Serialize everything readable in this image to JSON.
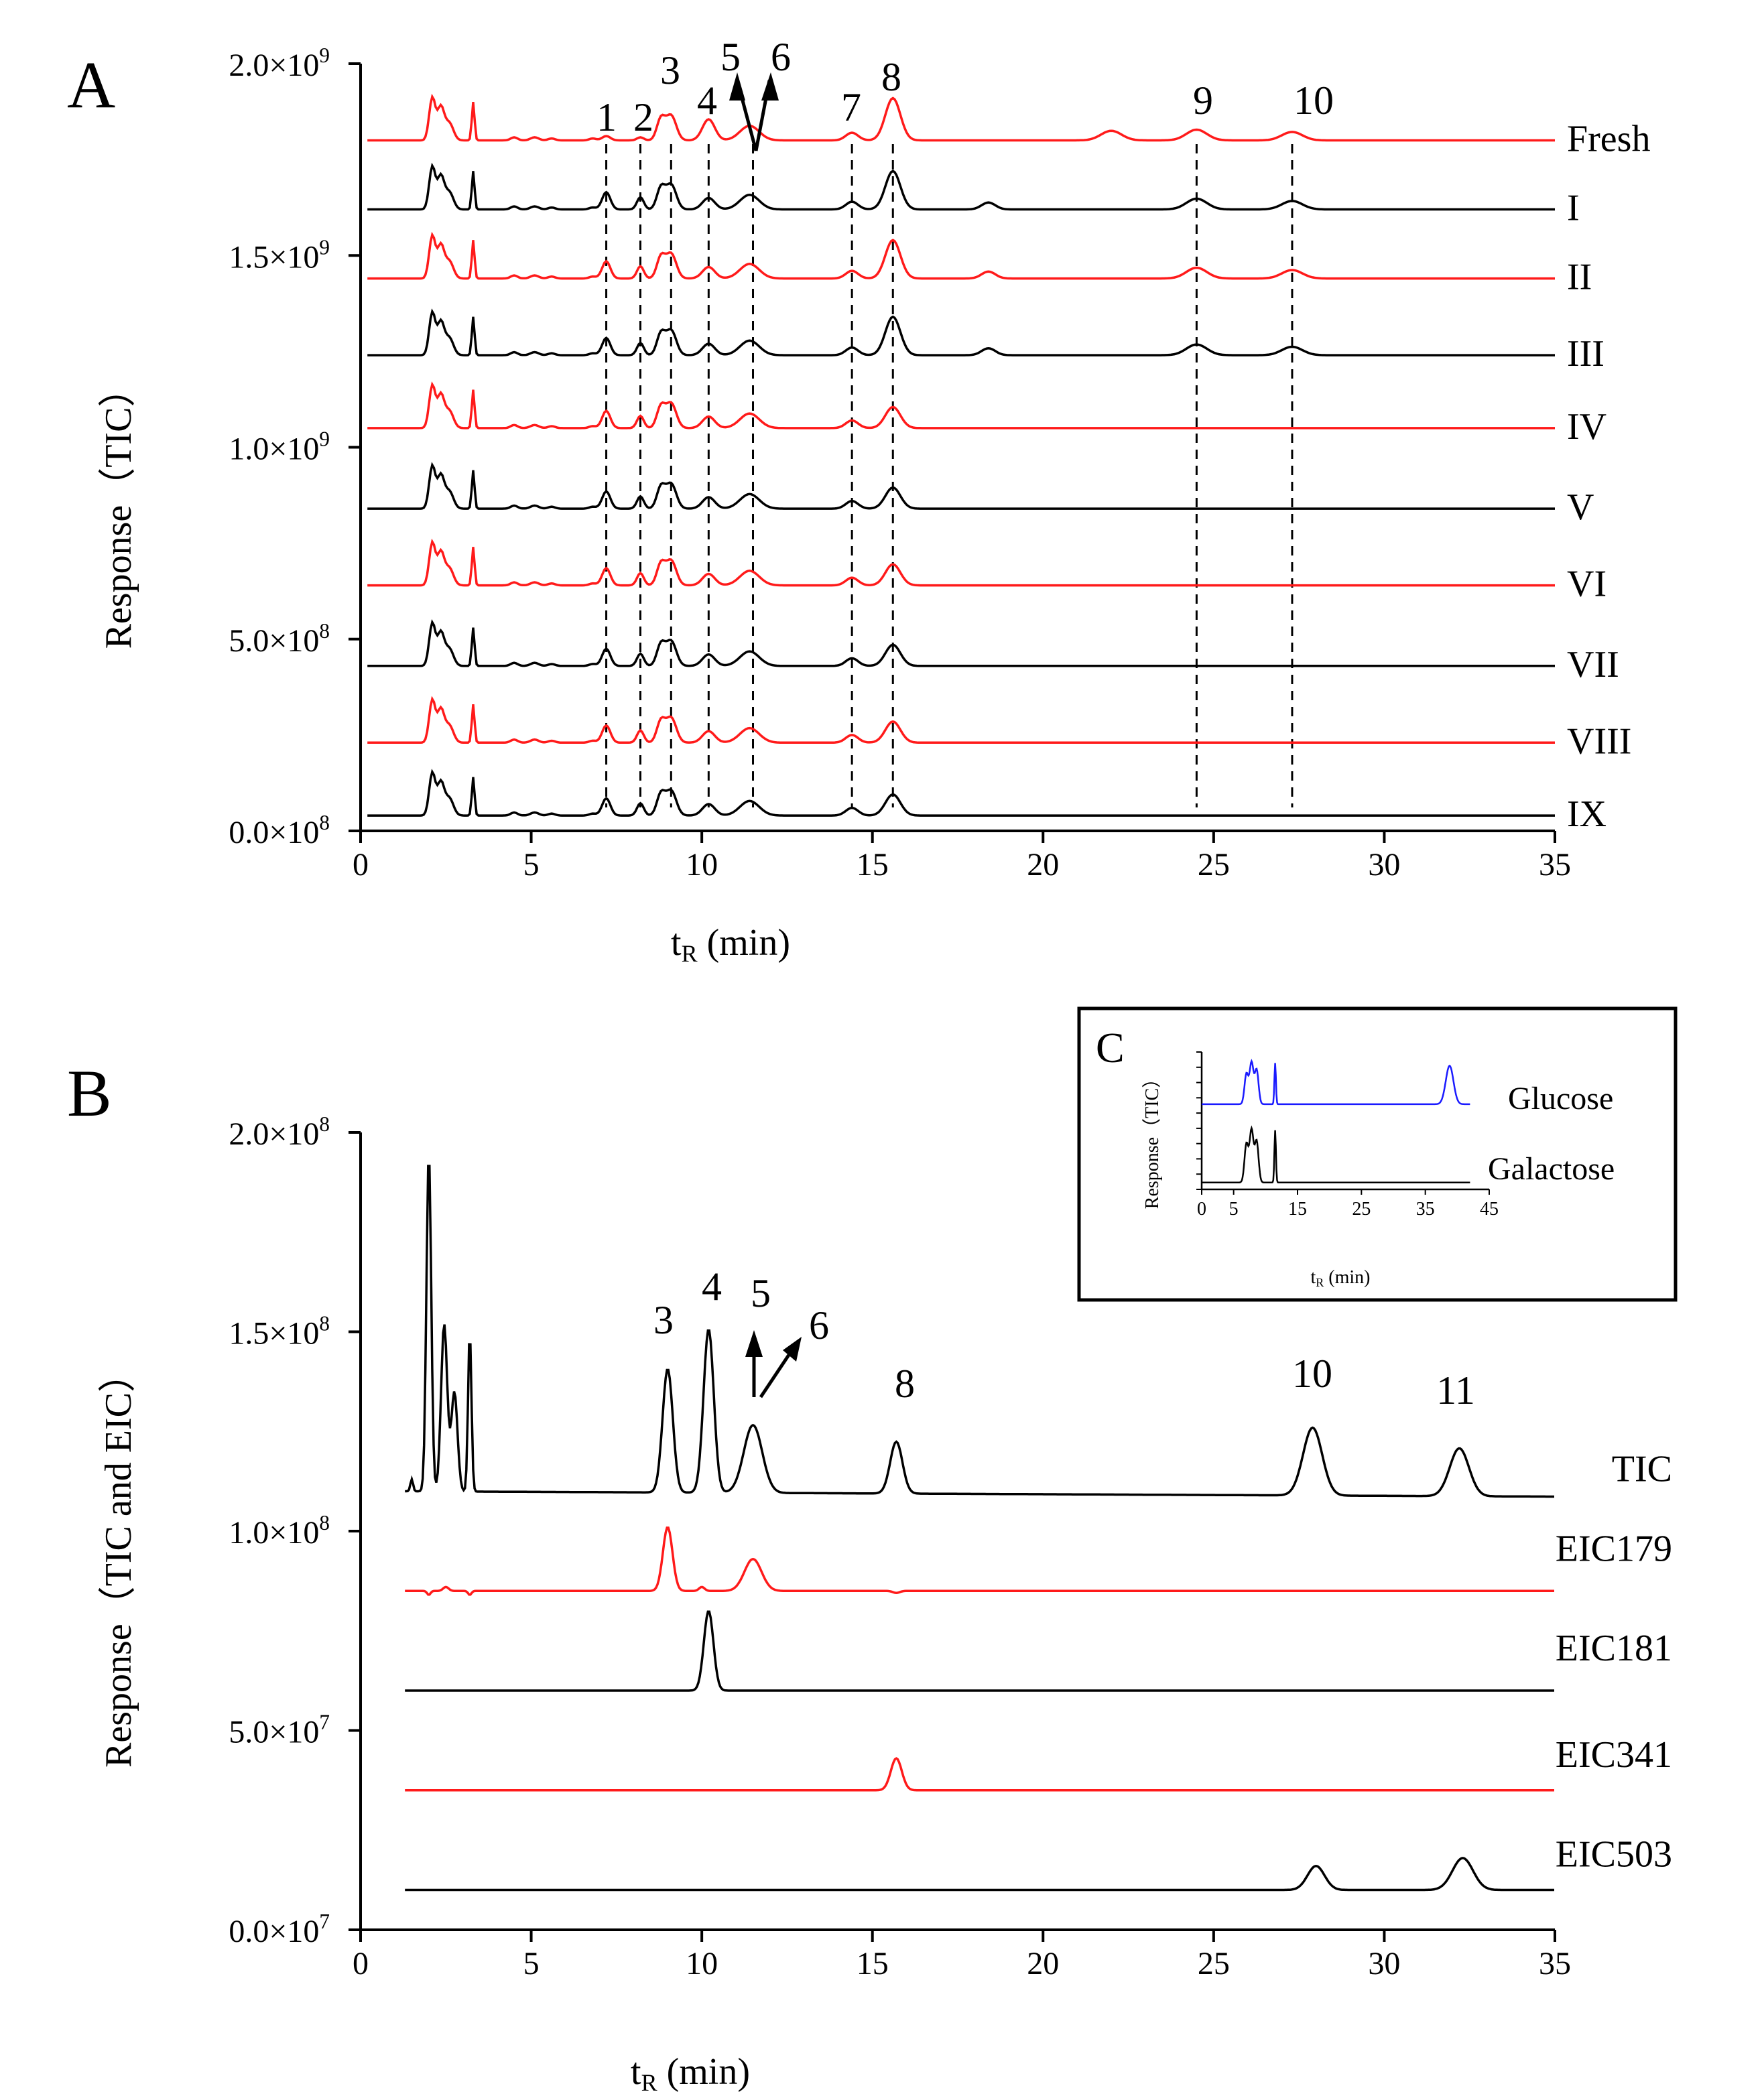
{
  "figure": {
    "panel_a_label": "A",
    "panel_b_label": "B",
    "panel_c_label": "C"
  },
  "chart_data": [
    {
      "panel": "A",
      "type": "line",
      "title": "",
      "xlabel": "tR (min)",
      "xlabel_main": "t",
      "xlabel_sub": "R",
      "xlabel_rest": " (min)",
      "ylabel": "Response（TIC）",
      "xlim": [
        0,
        35
      ],
      "xticks": [
        0,
        5,
        10,
        15,
        20,
        25,
        30,
        35
      ],
      "xtick_labels": [
        "0",
        "5",
        "10",
        "15",
        "20",
        "25",
        "30",
        "35"
      ],
      "ylim": [
        0,
        2000000000
      ],
      "yticks": [
        0,
        500000000,
        1000000000,
        1500000000,
        2000000000
      ],
      "ytick_labels": [
        {
          "mant": "0.0×10",
          "exp": "8"
        },
        {
          "mant": "5.0×10",
          "exp": "8"
        },
        {
          "mant": "1.0×10",
          "exp": "9"
        },
        {
          "mant": "1.5×10",
          "exp": "9"
        },
        {
          "mant": "2.0×10",
          "exp": "9"
        }
      ],
      "series": [
        {
          "name": "Fresh",
          "color": "#ff1a1a",
          "baseline": 1800000000,
          "scale": 1.0,
          "tail": [
            "pk9",
            "pk10",
            "pk22"
          ]
        },
        {
          "name": "I",
          "color": "#000000",
          "baseline": 1620000000,
          "scale": 1.0,
          "tail": [
            "pk9",
            "pk10",
            "pk18"
          ]
        },
        {
          "name": "II",
          "color": "#ff1a1a",
          "baseline": 1440000000,
          "scale": 1.0,
          "tail": [
            "pk9",
            "pk10",
            "pk18"
          ]
        },
        {
          "name": "III",
          "color": "#000000",
          "baseline": 1240000000,
          "scale": 1.0,
          "tail": [
            "pk9",
            "pk10",
            "pk18"
          ]
        },
        {
          "name": "IV",
          "color": "#ff1a1a",
          "baseline": 1050000000,
          "scale": 1.0,
          "tail": []
        },
        {
          "name": "V",
          "color": "#000000",
          "baseline": 840000000,
          "scale": 1.0,
          "tail": []
        },
        {
          "name": "VI",
          "color": "#ff1a1a",
          "baseline": 640000000,
          "scale": 1.0,
          "tail": []
        },
        {
          "name": "VII",
          "color": "#000000",
          "baseline": 430000000,
          "scale": 1.0,
          "tail": []
        },
        {
          "name": "VIII",
          "color": "#ff1a1a",
          "baseline": 230000000,
          "scale": 1.0,
          "tail": []
        },
        {
          "name": "IX",
          "color": "#000000",
          "baseline": 40000000,
          "scale": 1.0,
          "tail": []
        }
      ],
      "peaks": [
        {
          "label": "1",
          "x": 7.2
        },
        {
          "label": "2",
          "x": 8.2
        },
        {
          "label": "3",
          "x": 9.1
        },
        {
          "label": "4",
          "x": 10.2
        },
        {
          "label": "5",
          "x": 11.3
        },
        {
          "label": "6",
          "x": 11.7
        },
        {
          "label": "7",
          "x": 14.4
        },
        {
          "label": "8",
          "x": 15.6
        },
        {
          "label": "9",
          "x": 24.5
        },
        {
          "label": "10",
          "x": 27.3
        }
      ],
      "dashed_x": [
        7.2,
        8.2,
        9.1,
        10.2,
        11.5,
        14.4,
        15.6,
        24.5,
        27.3
      ]
    },
    {
      "panel": "B",
      "type": "line",
      "title": "",
      "xlabel": "tR (min)",
      "xlabel_main": "t",
      "xlabel_sub": "R",
      "xlabel_rest": " (min)",
      "ylabel": "Response（TIC and EIC）",
      "xlim": [
        0,
        35
      ],
      "xticks": [
        0,
        5,
        10,
        15,
        20,
        25,
        30,
        35
      ],
      "xtick_labels": [
        "0",
        "5",
        "10",
        "15",
        "20",
        "25",
        "30",
        "35"
      ],
      "ylim": [
        0,
        200000000
      ],
      "yticks": [
        0,
        50000000,
        100000000,
        150000000,
        200000000
      ],
      "ytick_labels": [
        {
          "mant": "0.0×10",
          "exp": "7"
        },
        {
          "mant": "5.0×10",
          "exp": "7"
        },
        {
          "mant": "1.0×10",
          "exp": "8"
        },
        {
          "mant": "1.5×10",
          "exp": "8"
        },
        {
          "mant": "2.0×10",
          "exp": "8"
        }
      ],
      "series": [
        {
          "name": "TIC",
          "color": "#000000",
          "baseline": 110000000
        },
        {
          "name": "EIC179",
          "color": "#ff1a1a",
          "baseline": 85000000
        },
        {
          "name": "EIC181",
          "color": "#000000",
          "baseline": 60000000
        },
        {
          "name": "EIC341",
          "color": "#ff1a1a",
          "baseline": 35000000
        },
        {
          "name": "EIC503",
          "color": "#000000",
          "baseline": 10000000
        }
      ],
      "peaks": [
        {
          "label": "3",
          "x": 9.0
        },
        {
          "label": "4",
          "x": 10.2
        },
        {
          "label": "5",
          "x": 11.6
        },
        {
          "label": "6",
          "x": 12.4
        },
        {
          "label": "8",
          "x": 15.7
        },
        {
          "label": "10",
          "x": 27.9
        },
        {
          "label": "11",
          "x": 32.2
        }
      ]
    },
    {
      "panel": "C",
      "type": "line",
      "title": "",
      "xlabel": "tR (min)",
      "xlabel_main": "t",
      "xlabel_sub": "R",
      "xlabel_rest": " (min)",
      "ylabel": "Response（TIC）",
      "xlim": [
        0,
        45
      ],
      "xticks": [
        0,
        5,
        15,
        25,
        35,
        45
      ],
      "xtick_labels": [
        "0",
        "5",
        "15",
        "25",
        "35",
        "45"
      ],
      "series": [
        {
          "name": "Glucose",
          "color": "#1a1aff",
          "baseline": 0.62
        },
        {
          "name": "Galactose",
          "color": "#000000",
          "baseline": 0.05
        }
      ]
    }
  ]
}
